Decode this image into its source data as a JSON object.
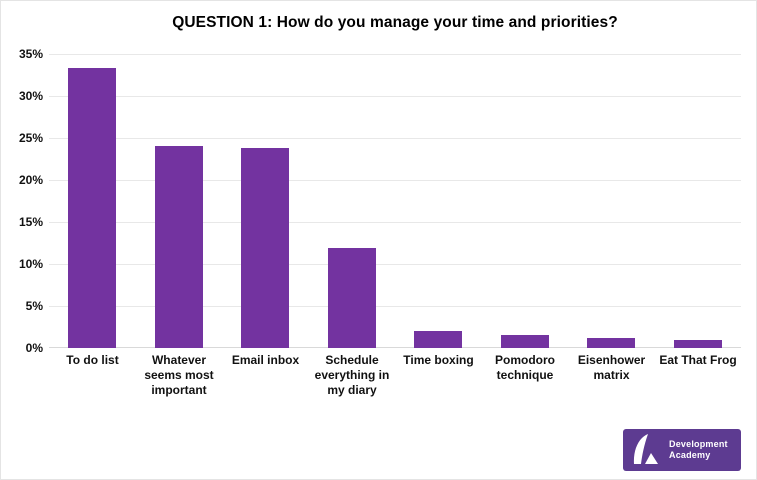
{
  "chart_data": {
    "type": "bar",
    "title": "QUESTION 1: How do you manage your time and priorities?",
    "categories": [
      "To do list",
      "Whatever seems most important",
      "Email inbox",
      "Schedule everything in my diary",
      "Time boxing",
      "Pomodoro technique",
      "Eisenhower matrix",
      "Eat That Frog"
    ],
    "values": [
      33.3,
      24.1,
      23.8,
      11.9,
      2.0,
      1.5,
      1.2,
      0.9
    ],
    "xlabel": "",
    "ylabel": "",
    "ylim": [
      0,
      35
    ],
    "yticks": [
      0,
      5,
      10,
      15,
      20,
      25,
      30,
      35
    ],
    "ytick_suffix": "%",
    "grid": true,
    "legend": "none",
    "bar_color": "#7333a0"
  },
  "colors": {
    "bar": "#7333a0",
    "gridline": "#e8e8e8",
    "baseline": "#d9d9d9",
    "title_text": "#000000",
    "axis_text": "#111111",
    "background": "#ffffff",
    "frame_border": "#e4e4e4",
    "logo_background": "#5d3b91",
    "logo_text": "#ffffff"
  },
  "logo": {
    "line1": "Development",
    "line2": "Academy"
  }
}
